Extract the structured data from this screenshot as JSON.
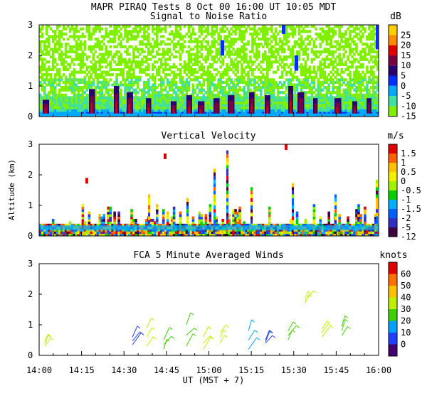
{
  "header": {
    "title": "MAPR PIRAQ Tests  8 Oct 00  16:00 UT  10:05  MDT"
  },
  "chart_data": [
    {
      "type": "heatmap",
      "title": "Signal to Noise Ratio",
      "ylabel": "",
      "ylim": [
        0,
        3
      ],
      "yticks": [
        "0",
        "1",
        "2",
        "3"
      ],
      "colorbar": {
        "unit": "dB",
        "labels": [
          "25",
          "20",
          "15",
          "10",
          "5",
          "0",
          "-5",
          "-10",
          "-15"
        ],
        "colors": [
          "#ffd000",
          "#ff8c00",
          "#e00000",
          "#7a0040",
          "#2a0070",
          "#0030ff",
          "#00a8ff",
          "#40e0a0",
          "#80f000"
        ]
      }
    },
    {
      "type": "heatmap",
      "title": "Vertical Velocity",
      "ylabel": "Altitude (km)",
      "ylim": [
        0,
        3
      ],
      "yticks": [
        "0",
        "1",
        "2",
        "3"
      ],
      "colorbar": {
        "unit": "m/s",
        "labels": [
          "1.5",
          "1",
          "0.5",
          "0",
          "-0.5",
          "-1",
          "-1.5",
          "-2",
          "-5",
          "-12"
        ],
        "colors": [
          "#e00000",
          "#ff6000",
          "#ffc000",
          "#f0f000",
          "#a0f000",
          "#00d000",
          "#00b0ff",
          "#0060ff",
          "#3030c0",
          "#400040"
        ]
      }
    },
    {
      "type": "scatter",
      "title": "FCA 5 Minute Averaged Winds",
      "ylim": [
        0,
        3
      ],
      "yticks": [
        "0",
        "1",
        "2",
        "3"
      ],
      "xlabel": "UT  (MST + 7)",
      "xticks": [
        "14:00",
        "14:15",
        "14:30",
        "14:45",
        "15:00",
        "15:15",
        "15:30",
        "15:45",
        "16:00"
      ],
      "colorbar": {
        "unit": "knots",
        "labels": [
          "60",
          "50",
          "40",
          "30",
          "20",
          "10",
          "0"
        ],
        "colors": [
          "#e00000",
          "#ff7000",
          "#ffc000",
          "#c0f000",
          "#40d000",
          "#00a0ff",
          "#2040ff",
          "#400070"
        ]
      },
      "barbs": [
        {
          "time": "14:02",
          "alt_km": [
            0.3,
            0.45
          ],
          "speed_kt": 35
        },
        {
          "time": "14:33",
          "alt_km": [
            0.35,
            0.6
          ],
          "speed_kt": 8
        },
        {
          "time": "14:38",
          "alt_km": [
            0.3,
            0.9
          ],
          "speed_kt": 35
        },
        {
          "time": "14:44",
          "alt_km": [
            0.2,
            0.5
          ],
          "speed_kt": 30
        },
        {
          "time": "14:52",
          "alt_km": [
            0.3,
            1.0
          ],
          "speed_kt": 28
        },
        {
          "time": "14:58",
          "alt_km": [
            0.2,
            0.6
          ],
          "speed_kt": 42
        },
        {
          "time": "15:04",
          "alt_km": [
            0.4,
            0.75
          ],
          "speed_kt": 35
        },
        {
          "time": "15:14",
          "alt_km": [
            0.2,
            0.8
          ],
          "speed_kt": 15
        },
        {
          "time": "15:20",
          "alt_km": [
            0.4,
            0.5
          ],
          "speed_kt": 8
        },
        {
          "time": "15:28",
          "alt_km": [
            0.5,
            0.8
          ],
          "speed_kt": 30
        },
        {
          "time": "15:34",
          "alt_km": [
            1.7,
            1.85
          ],
          "speed_kt": 38
        },
        {
          "time": "15:40",
          "alt_km": [
            0.6,
            0.85
          ],
          "speed_kt": 35
        },
        {
          "time": "15:47",
          "alt_km": [
            0.65,
            0.95
          ],
          "speed_kt": 30
        }
      ]
    }
  ]
}
